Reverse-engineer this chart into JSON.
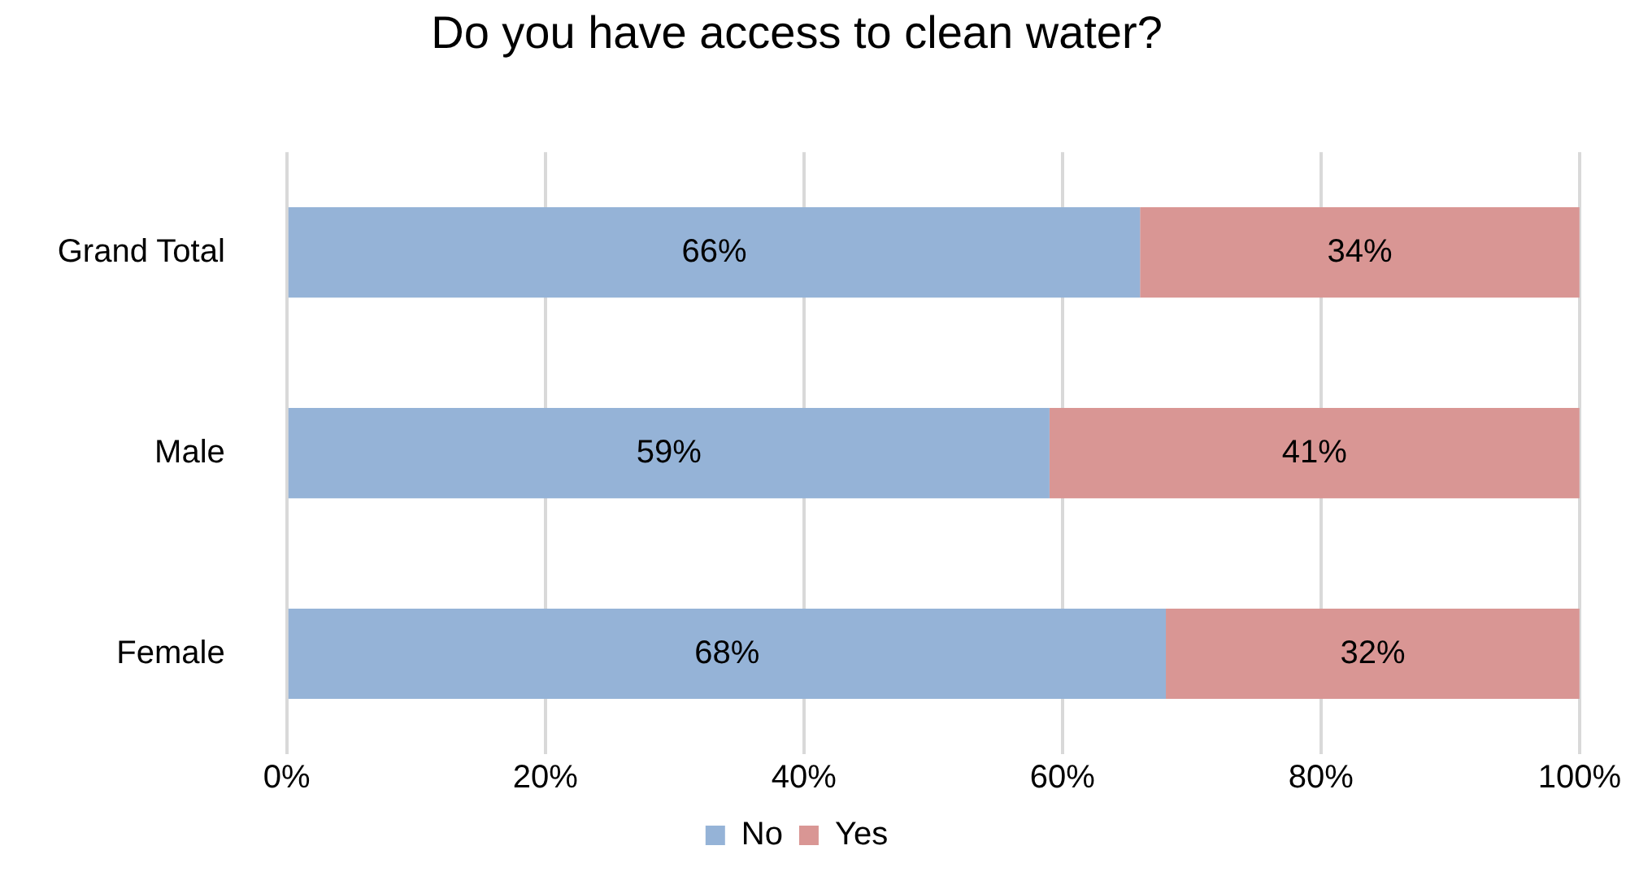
{
  "chart_data": {
    "type": "bar",
    "orientation": "horizontal",
    "stacked": true,
    "title": "Do you have access to clean water?",
    "categories": [
      "Grand Total",
      "Male",
      "Female"
    ],
    "series": [
      {
        "name": "No",
        "color": "#95b3d7",
        "values": [
          66,
          59,
          68
        ],
        "value_labels": [
          "66%",
          "59%",
          "68%"
        ]
      },
      {
        "name": "Yes",
        "color": "#d99694",
        "values": [
          34,
          41,
          32
        ],
        "value_labels": [
          "34%",
          "41%",
          "32%"
        ]
      }
    ],
    "xlim": [
      0,
      100
    ],
    "xticks": [
      {
        "value": 0,
        "label": "0%"
      },
      {
        "value": 20,
        "label": "20%"
      },
      {
        "value": 40,
        "label": "40%"
      },
      {
        "value": 60,
        "label": "60%"
      },
      {
        "value": 80,
        "label": "80%"
      },
      {
        "value": 100,
        "label": "100%"
      }
    ],
    "grid": "x",
    "legend": "bottom"
  }
}
